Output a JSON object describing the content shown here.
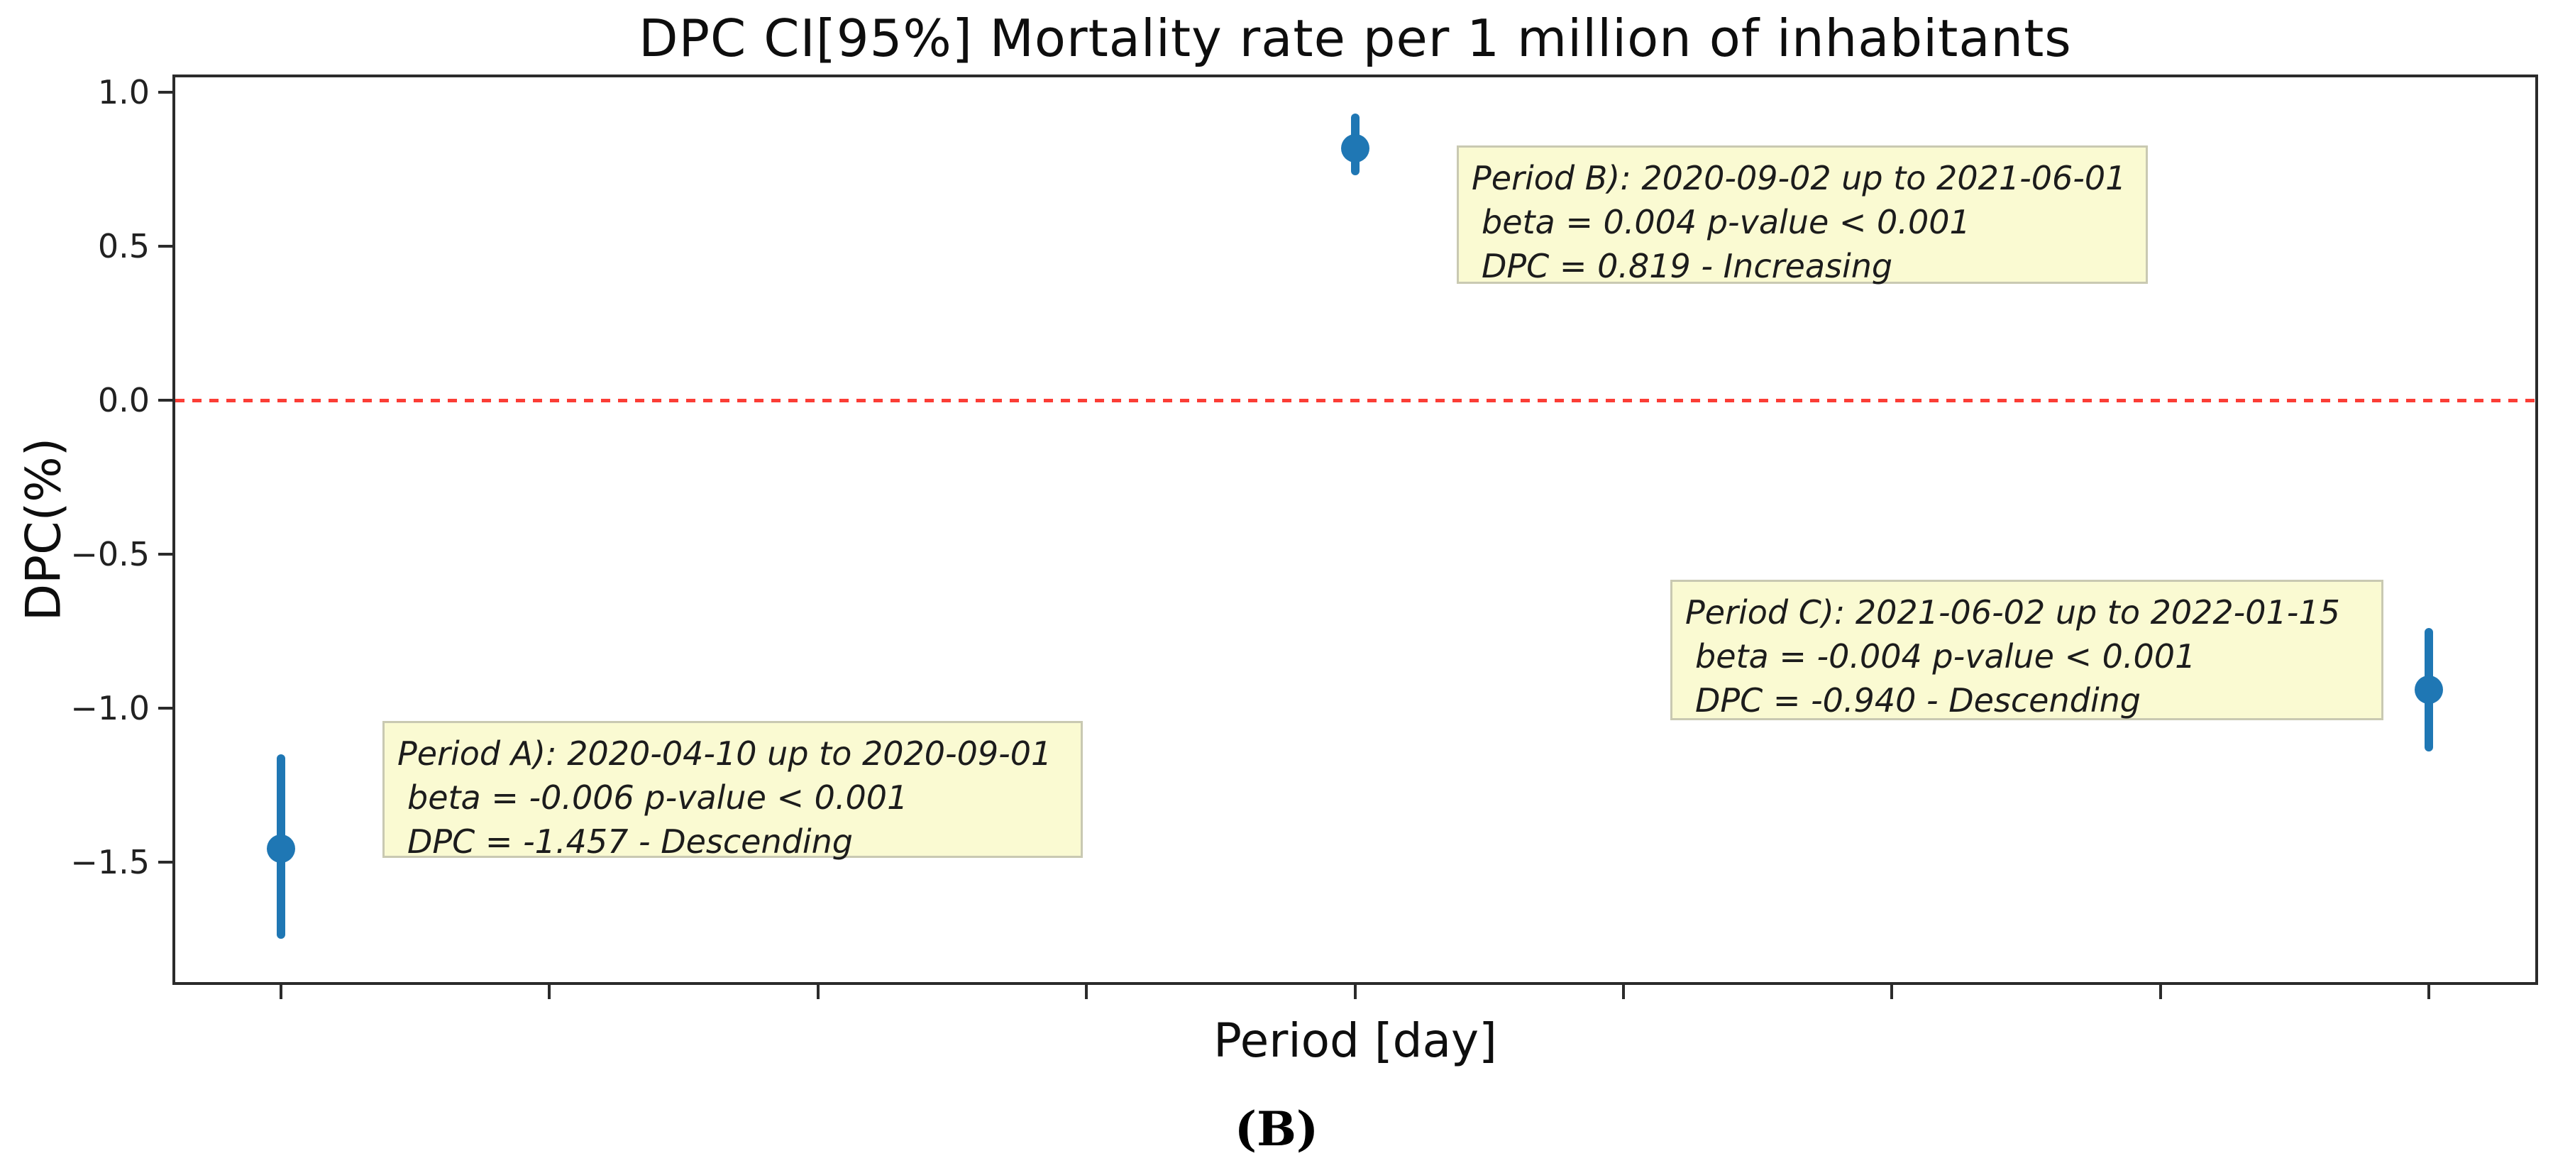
{
  "figure": {
    "caption": "(B)"
  },
  "chart_data": {
    "type": "scatter",
    "title": "DPC CI[95%] Mortality rate per 1 million of inhabitants",
    "xlabel": "Period [day]",
    "ylabel": "DPC(%)",
    "grid": false,
    "legend": "none",
    "ylim": [
      -1.89,
      1.05
    ],
    "y_ticks": [
      {
        "value": 1.0,
        "label": "1.0"
      },
      {
        "value": 0.5,
        "label": "0.5"
      },
      {
        "value": 0.0,
        "label": "0.0"
      },
      {
        "value": -0.5,
        "label": "−0.5"
      },
      {
        "value": -1.0,
        "label": "−1.0"
      },
      {
        "value": -1.5,
        "label": "−1.5"
      }
    ],
    "x_ticks": {
      "count": 9,
      "labels_visible": false
    },
    "reference_line": {
      "y": 0.0,
      "style": "dashed",
      "color": "#fb2c24"
    },
    "series": [
      {
        "marker": "circle",
        "color": "#1f77b4",
        "points": [
          {
            "period": "A",
            "x_tick": 1,
            "dpc": -1.457,
            "ci_low": -1.75,
            "ci_high": -1.15
          },
          {
            "period": "B",
            "x_tick": 5,
            "dpc": 0.819,
            "ci_low": 0.73,
            "ci_high": 0.93
          },
          {
            "period": "C",
            "x_tick": 9,
            "dpc": -0.94,
            "ci_low": -1.14,
            "ci_high": -0.74
          }
        ]
      }
    ],
    "annotations": [
      {
        "id": "period-a",
        "lines": [
          "Period A): 2020-04-10 up to 2020-09-01",
          "beta = -0.006 p-value < 0.001",
          "DPC = -1.457 - Descending"
        ]
      },
      {
        "id": "period-b",
        "lines": [
          "Period B): 2020-09-02 up to 2021-06-01",
          "beta = 0.004 p-value < 0.001",
          "DPC = 0.819 - Increasing"
        ]
      },
      {
        "id": "period-c",
        "lines": [
          "Period C): 2021-06-02 up to 2022-01-15",
          "beta = -0.004 p-value < 0.001",
          "DPC = -0.940 - Descending"
        ]
      }
    ],
    "colors": {
      "point": "#1f77b4",
      "reference_line": "#fb2c24",
      "annotation_fill": "#fafad2",
      "annotation_border": "#c9c9b2",
      "axis": "#2b2b2b"
    }
  }
}
